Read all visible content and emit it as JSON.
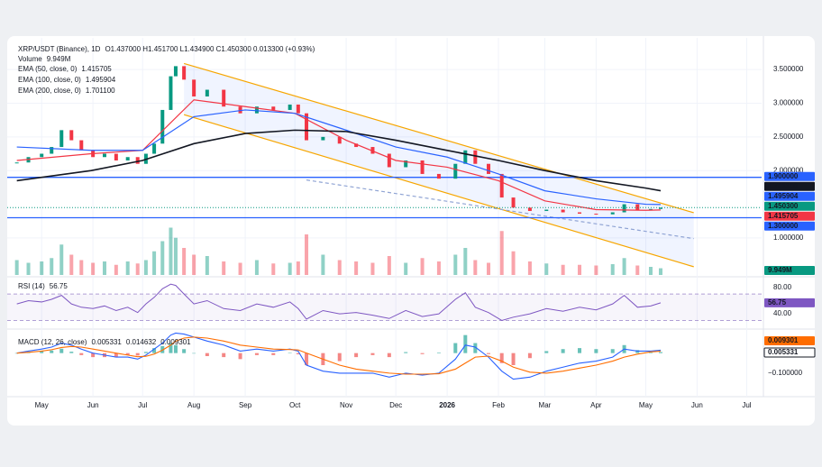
{
  "chart_data": {
    "type": "line",
    "ohlc": "O1.437000 H1.451700 L1.434900 C1.450300 0.013300 (+0.93%)",
    "xlim": [
      -17,
      435
    ],
    "xticks": [
      {
        "value": 0,
        "label": "May"
      },
      {
        "value": 31,
        "label": "Jun"
      },
      {
        "value": 61,
        "label": "Jul"
      },
      {
        "value": 92,
        "label": "Aug"
      },
      {
        "value": 123,
        "label": "Sep"
      },
      {
        "value": 153,
        "label": "Oct"
      },
      {
        "value": 184,
        "label": "Nov"
      },
      {
        "value": 214,
        "label": "Dec"
      },
      {
        "value": 245,
        "label": "2026"
      },
      {
        "value": 276,
        "label": "Feb"
      },
      {
        "value": 304,
        "label": "Mar"
      },
      {
        "value": 335,
        "label": "Apr"
      },
      {
        "value": 365,
        "label": "May"
      },
      {
        "value": 396,
        "label": "Jun"
      },
      {
        "value": 426,
        "label": "Jul"
      }
    ],
    "ylim": [
      0.45,
      3.93
    ],
    "yticks": [
      {
        "value": 3.5,
        "label": "3.500000"
      },
      {
        "value": 3.0,
        "label": "3.000000"
      },
      {
        "value": 2.5,
        "label": "2.500000"
      },
      {
        "value": 2.0,
        "label": "2.000000"
      },
      {
        "value": 1.0,
        "label": "1.000000"
      }
    ],
    "grid": true,
    "series": [
      {
        "name": "XRP/USDT (Binance), 1D",
        "color": "#089981",
        "down_color": "#f23645",
        "last_label": "1.450300",
        "x": [
          -15,
          -8,
          0,
          6,
          12,
          18,
          24,
          31,
          38,
          45,
          52,
          58,
          63,
          68,
          73,
          78,
          81,
          86,
          92,
          100,
          110,
          120,
          130,
          140,
          150,
          155,
          160,
          170,
          180,
          190,
          200,
          210,
          220,
          230,
          240,
          250,
          256,
          262,
          270,
          278,
          285,
          295,
          305,
          315,
          325,
          335,
          345,
          352,
          360,
          368,
          374
        ],
        "values": [
          2.12,
          2.2,
          2.25,
          2.35,
          2.6,
          2.45,
          2.3,
          2.2,
          2.25,
          2.15,
          2.2,
          2.1,
          2.25,
          2.4,
          2.9,
          3.4,
          3.55,
          3.35,
          3.1,
          3.2,
          2.95,
          2.85,
          2.95,
          2.9,
          2.98,
          2.85,
          2.45,
          2.5,
          2.4,
          2.35,
          2.25,
          2.05,
          2.15,
          1.95,
          1.88,
          2.1,
          2.3,
          2.1,
          1.95,
          1.6,
          1.45,
          1.4,
          1.42,
          1.38,
          1.36,
          1.35,
          1.38,
          1.5,
          1.42,
          1.43,
          1.4503
        ]
      },
      {
        "name": "EMA (50, close, 0)",
        "color": "#f23645",
        "x": [
          -15,
          30,
          61,
          92,
          123,
          153,
          184,
          214,
          245,
          276,
          304,
          335,
          365,
          374
        ],
        "values": [
          2.15,
          2.25,
          2.3,
          3.05,
          2.95,
          2.85,
          2.45,
          2.15,
          2.05,
          1.85,
          1.55,
          1.42,
          1.41,
          1.415705
        ]
      },
      {
        "name": "EMA (100, close, 0)",
        "color": "#2962ff",
        "x": [
          -15,
          30,
          61,
          92,
          123,
          153,
          184,
          214,
          245,
          276,
          304,
          335,
          365,
          374
        ],
        "values": [
          2.35,
          2.3,
          2.3,
          2.8,
          2.9,
          2.85,
          2.6,
          2.35,
          2.2,
          1.95,
          1.7,
          1.58,
          1.5,
          1.495904
        ]
      },
      {
        "name": "EMA (200, close, 0)",
        "color": "#131722",
        "last_label": "1.701100",
        "x": [
          -15,
          30,
          61,
          92,
          123,
          153,
          184,
          214,
          245,
          276,
          304,
          335,
          365,
          374
        ],
        "values": [
          1.85,
          2.0,
          2.15,
          2.4,
          2.55,
          2.6,
          2.58,
          2.45,
          2.3,
          2.15,
          2.0,
          1.85,
          1.74,
          1.7011
        ]
      }
    ],
    "volume": {
      "name": "Volume",
      "color": "#089981",
      "last_label": "9.949M",
      "values": [
        22,
        18,
        20,
        25,
        45,
        30,
        22,
        18,
        20,
        15,
        20,
        17,
        22,
        35,
        50,
        70,
        55,
        40,
        30,
        28,
        20,
        18,
        22,
        17,
        18,
        20,
        60,
        30,
        22,
        20,
        18,
        28,
        18,
        25,
        20,
        30,
        40,
        22,
        18,
        65,
        35,
        20,
        17,
        15,
        15,
        14,
        16,
        25,
        14,
        12,
        9.949
      ]
    },
    "hlines": [
      {
        "value": 1.9,
        "label": "1.900000",
        "color": "#2962ff"
      },
      {
        "value": 1.3,
        "label": "1.300000",
        "color": "#2962ff"
      }
    ],
    "trendlines": [
      {
        "x": [
          86,
          394
        ],
        "values": [
          3.59,
          1.374
        ],
        "color": "#f7a600"
      },
      {
        "x": [
          86,
          394
        ],
        "values": [
          2.83,
          0.572
        ],
        "color": "#f7a600"
      },
      {
        "x": [
          160,
          394
        ],
        "values": [
          1.86,
          0.99
        ],
        "color": "#90a4d4",
        "dashed": true
      }
    ],
    "channel_fill": "#2962ff",
    "rsi": {
      "name": "RSI (14)",
      "color": "#7e57c2",
      "ylim": [
        17,
        92
      ],
      "yticks": [
        {
          "value": 80,
          "label": "80.00"
        },
        {
          "value": 40,
          "label": "40.00"
        }
      ],
      "band": [
        70,
        30
      ],
      "values": [
        55,
        60,
        58,
        62,
        68,
        55,
        50,
        48,
        52,
        45,
        50,
        42,
        55,
        65,
        78,
        85,
        83,
        70,
        55,
        60,
        48,
        45,
        55,
        50,
        58,
        48,
        32,
        45,
        40,
        42,
        38,
        33,
        45,
        36,
        40,
        62,
        72,
        50,
        42,
        30,
        35,
        40,
        48,
        44,
        50,
        46,
        55,
        68,
        50,
        52,
        56.75
      ]
    },
    "macd": {
      "name": "MACD (12, 26, close)",
      "ylim": [
        -0.24,
        0.12
      ],
      "yticks": [
        {
          "value": -0.1,
          "label": "−0.100000"
        }
      ],
      "histogram": {
        "color": "#26a69a",
        "down_color": "#ef5350",
        "values": [
          0,
          0.006,
          0.01,
          0.013,
          0.022,
          0.007,
          -0.01,
          -0.02,
          -0.02,
          -0.02,
          -0.01,
          -0.012,
          0.006,
          0.025,
          0.035,
          0.05,
          0.04,
          0.02,
          0,
          -0.015,
          -0.02,
          -0.03,
          -0.01,
          -0.01,
          0.002,
          -0.006,
          -0.06,
          -0.06,
          -0.04,
          -0.02,
          -0.01,
          -0.02,
          0.005,
          -0.005,
          0.003,
          0.05,
          0.09,
          0.05,
          -0.005,
          -0.05,
          -0.06,
          -0.025,
          0.01,
          0.02,
          0.025,
          0.02,
          0.02,
          0.04,
          0.015,
          0.004,
          0.005331
        ]
      },
      "macd_line": {
        "color": "#2962ff",
        "values": [
          0,
          0.01,
          0.02,
          0.03,
          0.05,
          0.04,
          0.02,
          0,
          -0.01,
          -0.02,
          -0.02,
          -0.03,
          -0.01,
          0.02,
          0.05,
          0.09,
          0.1,
          0.095,
          0.08,
          0.06,
          0.04,
          0.01,
          0.02,
          0.01,
          0.02,
          0.01,
          -0.06,
          -0.09,
          -0.1,
          -0.1,
          -0.1,
          -0.12,
          -0.1,
          -0.11,
          -0.1,
          -0.03,
          0.04,
          0.03,
          -0.02,
          -0.09,
          -0.13,
          -0.12,
          -0.09,
          -0.07,
          -0.05,
          -0.04,
          -0.02,
          0.02,
          0.01,
          0.01,
          0.014632
        ]
      },
      "signal_line": {
        "color": "#ff6d00",
        "values": [
          0,
          0.004,
          0.01,
          0.017,
          0.028,
          0.033,
          0.03,
          0.02,
          0.01,
          0,
          -0.01,
          -0.018,
          -0.016,
          -0.005,
          0.015,
          0.04,
          0.06,
          0.075,
          0.08,
          0.075,
          0.06,
          0.04,
          0.03,
          0.02,
          0.018,
          0.016,
          0,
          -0.03,
          -0.06,
          -0.08,
          -0.09,
          -0.1,
          -0.105,
          -0.105,
          -0.103,
          -0.08,
          -0.05,
          -0.02,
          -0.015,
          -0.04,
          -0.07,
          -0.095,
          -0.1,
          -0.09,
          -0.075,
          -0.06,
          -0.04,
          -0.02,
          -0.005,
          0.006,
          0.009301
        ]
      }
    }
  }
}
